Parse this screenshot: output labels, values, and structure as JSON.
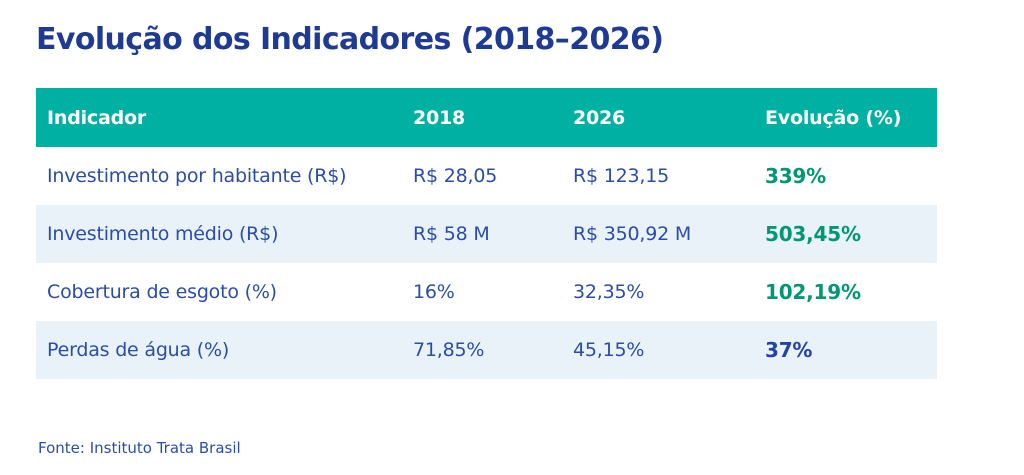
{
  "title": "Evolução dos Indicadores (2018–2026)",
  "table": {
    "headers": [
      "Indicador",
      "2018",
      "2026",
      "Evolução (%)"
    ],
    "rows": [
      {
        "indicator": "Investimento por habitante (R$)",
        "y2018": "R$ 28,05",
        "y2026": "R$ 123,15",
        "evolution": "339%"
      },
      {
        "indicator": "Investimento médio (R$)",
        "y2018": "R$ 58 M",
        "y2026": "R$ 350,92 M",
        "evolution": "503,45%"
      },
      {
        "indicator": "Cobertura de esgoto (%)",
        "y2018": "16%",
        "y2026": "32,35%",
        "evolution": "102,19%"
      },
      {
        "indicator": "Perdas de água (%)",
        "y2018": "71,85%",
        "y2026": "45,15%",
        "evolution": "37%"
      }
    ]
  },
  "source": "Fonte: Instituto Trata Brasil",
  "colors": {
    "title_blue": "#1e3a93",
    "cell_blue": "#2a4da8",
    "header_teal": "#00b1a3",
    "header_text": "#ffffff",
    "row_alt_blue": "#e9f2f9",
    "evolution_green": "#009774",
    "evolution_blue": "#2343a6"
  },
  "chart_data": {
    "type": "table",
    "title": "Evolução dos Indicadores (2018–2026)",
    "columns": [
      "Indicador",
      "2018",
      "2026",
      "Evolução (%)"
    ],
    "rows": [
      [
        "Investimento por habitante (R$)",
        "R$ 28,05",
        "R$ 123,15",
        "339%"
      ],
      [
        "Investimento médio (R$)",
        "R$ 58 M",
        "R$ 350,92 M",
        "503,45%"
      ],
      [
        "Cobertura de esgoto (%)",
        "16%",
        "32,35%",
        "102,19%"
      ],
      [
        "Perdas de água (%)",
        "71,85%",
        "45,15%",
        "37%"
      ]
    ],
    "source": "Fonte: Instituto Trata Brasil",
    "layout": {
      "header_bg": "#00b1a3",
      "alt_row_bg": "#e9f2f9",
      "positive_color": "#009774",
      "negative_color": "#2343a6"
    }
  }
}
